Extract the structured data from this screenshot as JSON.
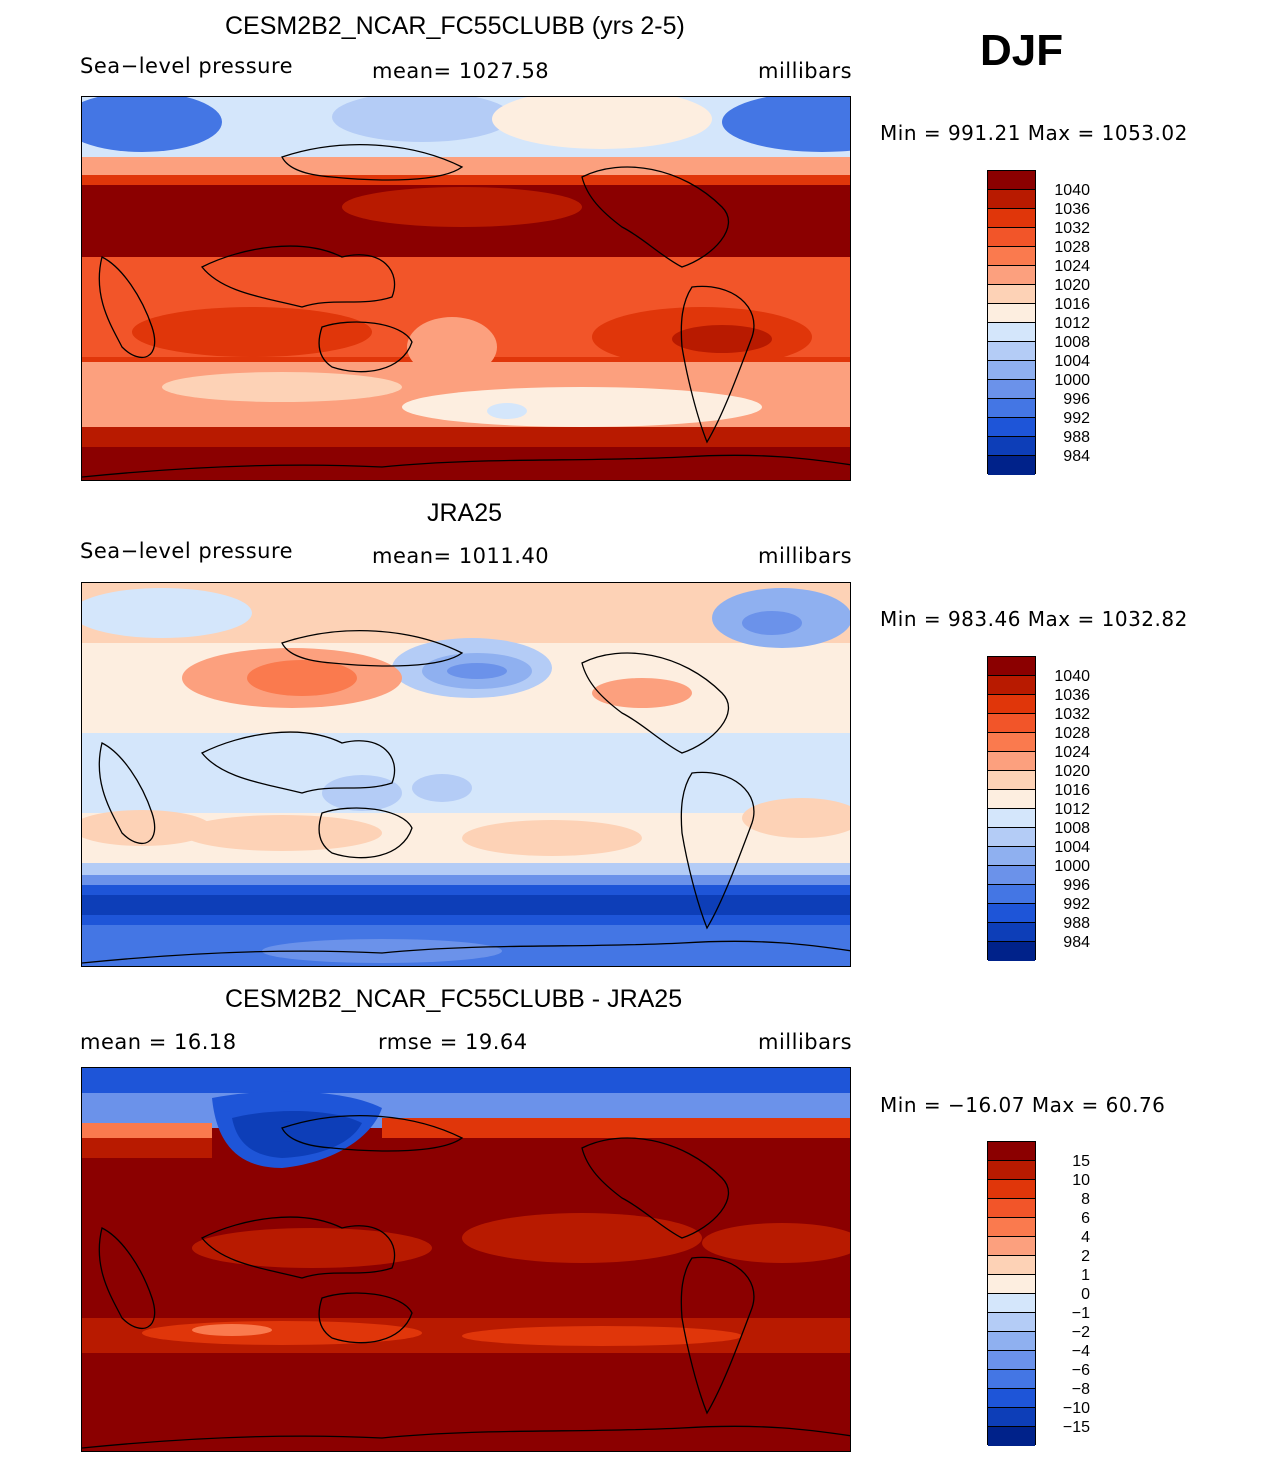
{
  "season": "DJF",
  "panels": [
    {
      "title": "CESM2B2_NCAR_FC55CLUBB (yrs 2-5)",
      "left_text": "Sea−level pressure",
      "center_text": "mean=  1027.58",
      "right_text": "millibars",
      "minmax": "Min  =  991.21  Max  =  1053.02",
      "map_description": "model sea-level pressure",
      "colorbar_labels": [
        "1040",
        "1036",
        "1032",
        "1028",
        "1024",
        "1020",
        "1016",
        "1012",
        "1008",
        "1004",
        "1000",
        "996",
        "992",
        "988",
        "984"
      ],
      "colorbar_colors": [
        "#8b0000",
        "#b81a00",
        "#e0360a",
        "#f25529",
        "#fa7a4e",
        "#fca07e",
        "#fdd2b6",
        "#fdeee0",
        "#d4e6fb",
        "#b4ccf6",
        "#8fb0f0",
        "#6b92ea",
        "#4476e4",
        "#1e55d8",
        "#0d3eb8",
        "#00228a"
      ]
    },
    {
      "title": "JRA25",
      "left_text": "Sea−level pressure",
      "center_text": "mean=  1011.40",
      "right_text": "millibars",
      "minmax": "Min  =  983.46  Max  =  1032.82",
      "map_description": "reanalysis sea-level pressure",
      "colorbar_labels": [
        "1040",
        "1036",
        "1032",
        "1028",
        "1024",
        "1020",
        "1016",
        "1012",
        "1008",
        "1004",
        "1000",
        "996",
        "992",
        "988",
        "984"
      ],
      "colorbar_colors": [
        "#8b0000",
        "#b81a00",
        "#e0360a",
        "#f25529",
        "#fa7a4e",
        "#fca07e",
        "#fdd2b6",
        "#fdeee0",
        "#d4e6fb",
        "#b4ccf6",
        "#8fb0f0",
        "#6b92ea",
        "#4476e4",
        "#1e55d8",
        "#0d3eb8",
        "#00228a"
      ]
    },
    {
      "title": "CESM2B2_NCAR_FC55CLUBB - JRA25",
      "left_text": "mean  =    16.18",
      "center_text": "rmse  =    19.64",
      "right_text": "millibars",
      "minmax": "Min  =  −16.07  Max  =    60.76",
      "map_description": "difference model minus reanalysis",
      "colorbar_labels": [
        "15",
        "10",
        "8",
        "6",
        "4",
        "2",
        "1",
        "0",
        "−1",
        "−2",
        "−4",
        "−6",
        "−8",
        "−10",
        "−15"
      ],
      "colorbar_colors": [
        "#8b0000",
        "#b81a00",
        "#e0360a",
        "#f25529",
        "#fa7a4e",
        "#fca07e",
        "#fdd2b6",
        "#fdeee0",
        "#d4e6fb",
        "#b4ccf6",
        "#8fb0f0",
        "#6b92ea",
        "#4476e4",
        "#1e55d8",
        "#0d3eb8",
        "#00228a"
      ]
    }
  ]
}
